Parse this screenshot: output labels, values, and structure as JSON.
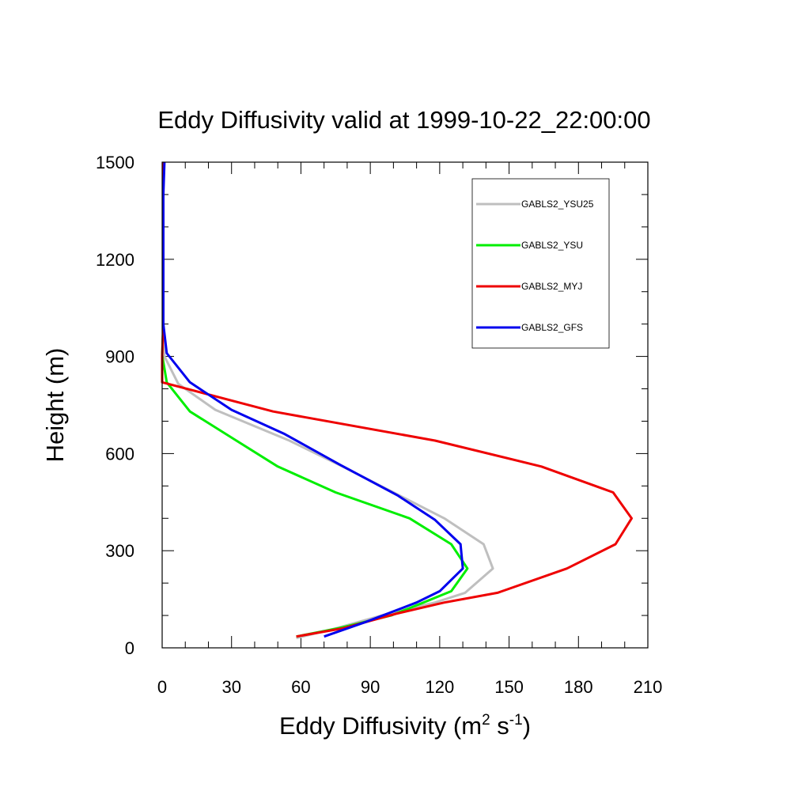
{
  "chart_data": {
    "type": "line",
    "title": "Eddy Diffusivity valid at 1999-10-22_22:00:00",
    "xlabel": "Eddy Diffusivity (m",
    "xlabel_sup1": "2",
    "xlabel_mid": " s",
    "xlabel_sup2": "-1",
    "xlabel_end": ")",
    "ylabel": "Height (m)",
    "xlim": [
      0,
      210
    ],
    "ylim": [
      0,
      1500
    ],
    "xticks": [
      "0",
      "30",
      "60",
      "90",
      "120",
      "150",
      "180",
      "210"
    ],
    "yticks": [
      "0",
      "300",
      "600",
      "900",
      "1200",
      "1500"
    ],
    "xtick_values": [
      0,
      30,
      60,
      90,
      120,
      150,
      180,
      210
    ],
    "ytick_values": [
      0,
      300,
      600,
      900,
      1200,
      1500
    ],
    "x_minor_step": 10,
    "y_minor_step": 100,
    "grid": false,
    "legend_position": "top-right",
    "series": [
      {
        "name": "GABLS2_YSU25",
        "color": "#bfbfbf",
        "points": [
          [
            58,
            30
          ],
          [
            75,
            60
          ],
          [
            100,
            110
          ],
          [
            118,
            140
          ],
          [
            131,
            170
          ],
          [
            143,
            245
          ],
          [
            139,
            320
          ],
          [
            122,
            400
          ],
          [
            100,
            480
          ],
          [
            78,
            560
          ],
          [
            55,
            640
          ],
          [
            23,
            735
          ],
          [
            7,
            815
          ],
          [
            1,
            900
          ],
          [
            0.5,
            1000
          ],
          [
            0.5,
            1100
          ],
          [
            0.5,
            1200
          ],
          [
            0.5,
            1300
          ],
          [
            0.5,
            1400
          ],
          [
            0.5,
            1500
          ]
        ]
      },
      {
        "name": "GABLS2_YSU",
        "color": "#00ee00",
        "points": [
          [
            58,
            35
          ],
          [
            76,
            60
          ],
          [
            99,
            100
          ],
          [
            113,
            140
          ],
          [
            125,
            175
          ],
          [
            132,
            245
          ],
          [
            125,
            320
          ],
          [
            107,
            400
          ],
          [
            75,
            480
          ],
          [
            50,
            560
          ],
          [
            31,
            645
          ],
          [
            12,
            730
          ],
          [
            2,
            820
          ],
          [
            0,
            905
          ],
          [
            0.5,
            1000
          ],
          [
            0.5,
            1100
          ],
          [
            0.5,
            1200
          ],
          [
            0.5,
            1300
          ],
          [
            0.5,
            1400
          ],
          [
            0.5,
            1500
          ]
        ]
      },
      {
        "name": "GABLS2_MYJ",
        "color": "#ee0000",
        "points": [
          [
            58,
            35
          ],
          [
            78,
            60
          ],
          [
            101,
            105
          ],
          [
            122,
            140
          ],
          [
            145,
            170
          ],
          [
            175,
            245
          ],
          [
            196,
            320
          ],
          [
            203,
            400
          ],
          [
            195,
            480
          ],
          [
            164,
            560
          ],
          [
            118,
            640
          ],
          [
            48,
            730
          ],
          [
            0,
            820
          ],
          [
            0,
            900
          ],
          [
            0.5,
            1000
          ],
          [
            0.5,
            1100
          ],
          [
            0.5,
            1200
          ],
          [
            0.5,
            1300
          ],
          [
            0.5,
            1400
          ],
          [
            0.5,
            1500
          ]
        ]
      },
      {
        "name": "GABLS2_GFS",
        "color": "#0000ee",
        "points": [
          [
            70,
            35
          ],
          [
            88,
            80
          ],
          [
            110,
            140
          ],
          [
            120,
            175
          ],
          [
            130,
            245
          ],
          [
            129,
            320
          ],
          [
            118,
            395
          ],
          [
            102,
            470
          ],
          [
            77,
            565
          ],
          [
            53,
            660
          ],
          [
            30,
            735
          ],
          [
            12,
            820
          ],
          [
            2,
            910
          ],
          [
            0.5,
            1000
          ],
          [
            0.5,
            1100
          ],
          [
            0.5,
            1200
          ],
          [
            0.5,
            1300
          ],
          [
            0.5,
            1400
          ],
          [
            1,
            1500
          ]
        ]
      }
    ]
  }
}
